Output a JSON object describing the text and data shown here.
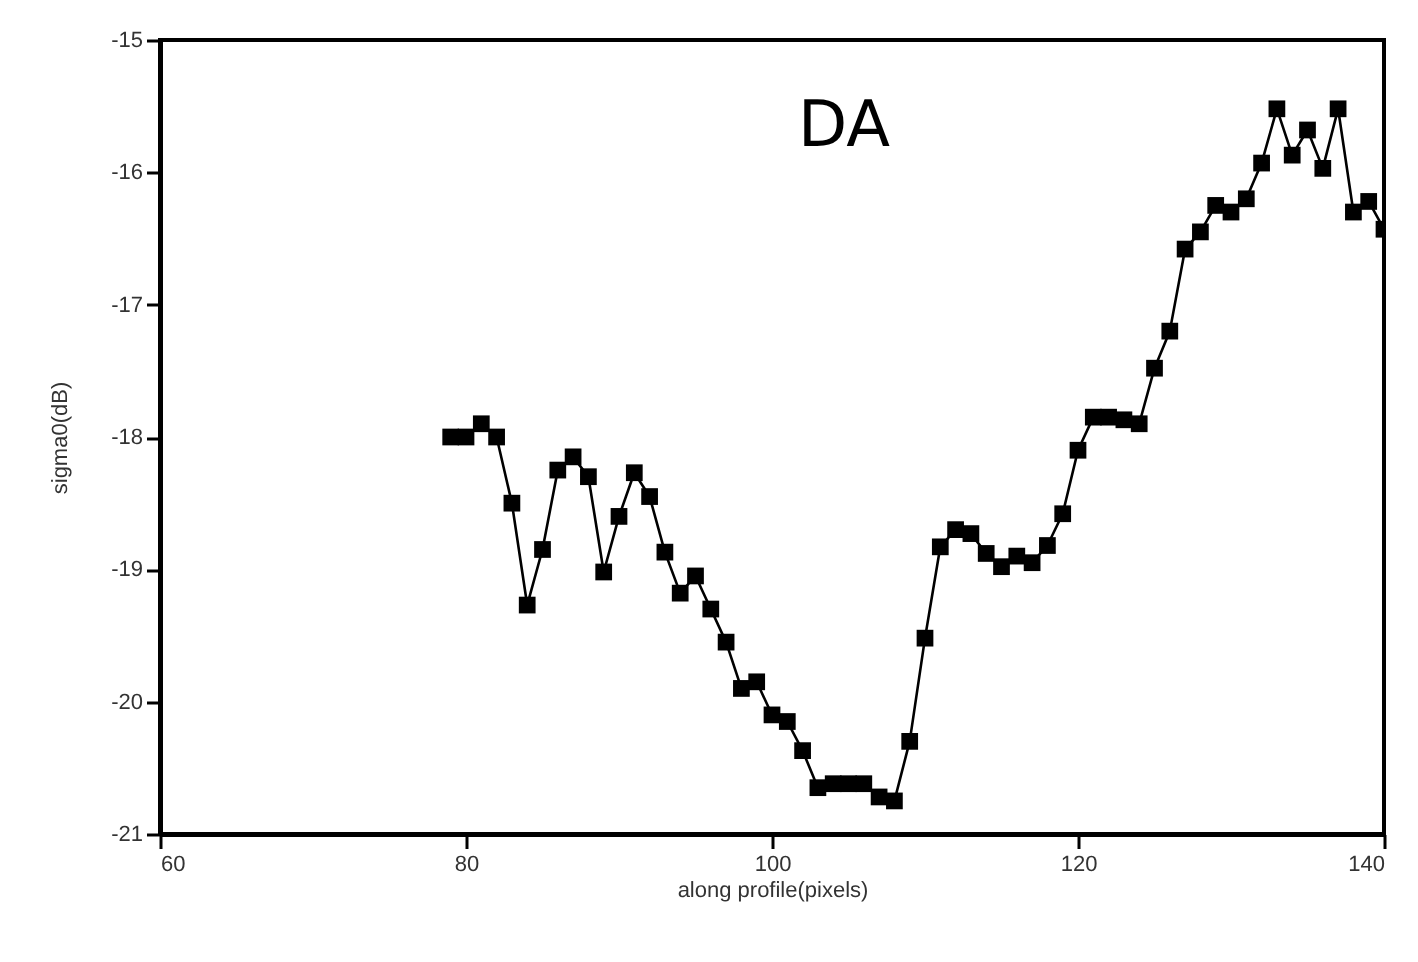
{
  "chart_data": {
    "type": "line",
    "title": "DA",
    "xlabel": "along profile(pixels)",
    "ylabel": "sigma0(dB)",
    "x": [
      79,
      80,
      81,
      82,
      83,
      84,
      85,
      86,
      87,
      88,
      89,
      90,
      91,
      92,
      93,
      94,
      95,
      96,
      97,
      98,
      99,
      100,
      101,
      102,
      103,
      104,
      105,
      106,
      107,
      108,
      109,
      110,
      111,
      112,
      113,
      114,
      115,
      116,
      117,
      118,
      119,
      120,
      121,
      122,
      123,
      124,
      125,
      126,
      127,
      128,
      129,
      130,
      131,
      132,
      133,
      134,
      135,
      136,
      137,
      138,
      139,
      140
    ],
    "series": [
      {
        "color": "#000000",
        "values": [
          -18.0,
          -18.0,
          -17.9,
          -18.0,
          -18.5,
          -19.27,
          -18.85,
          -18.25,
          -18.15,
          -18.3,
          -19.02,
          -18.6,
          -18.27,
          -18.45,
          -18.87,
          -19.18,
          -19.05,
          -19.3,
          -19.55,
          -19.9,
          -19.85,
          -20.1,
          -20.15,
          -20.37,
          -20.65,
          -20.62,
          -20.62,
          -20.62,
          -20.72,
          -20.75,
          -20.3,
          -19.52,
          -18.83,
          -18.7,
          -18.73,
          -18.88,
          -18.98,
          -18.9,
          -18.95,
          -18.82,
          -18.58,
          -18.1,
          -17.85,
          -17.85,
          -17.87,
          -17.9,
          -17.48,
          -17.2,
          -16.58,
          -16.45,
          -16.25,
          -16.3,
          -16.2,
          -15.93,
          -15.52,
          -15.87,
          -15.68,
          -15.97,
          -15.52,
          -16.3,
          -16.22,
          -16.43
        ]
      }
    ],
    "xlim": [
      60,
      140
    ],
    "xticks": [
      60,
      80,
      100,
      120,
      140
    ],
    "ylim": [
      -21,
      -15
    ],
    "yticks": [
      -21,
      -20,
      -19,
      -18,
      -17,
      -16,
      -15
    ],
    "marker": "square",
    "line_style": "solid",
    "grid": false,
    "legend": false
  }
}
